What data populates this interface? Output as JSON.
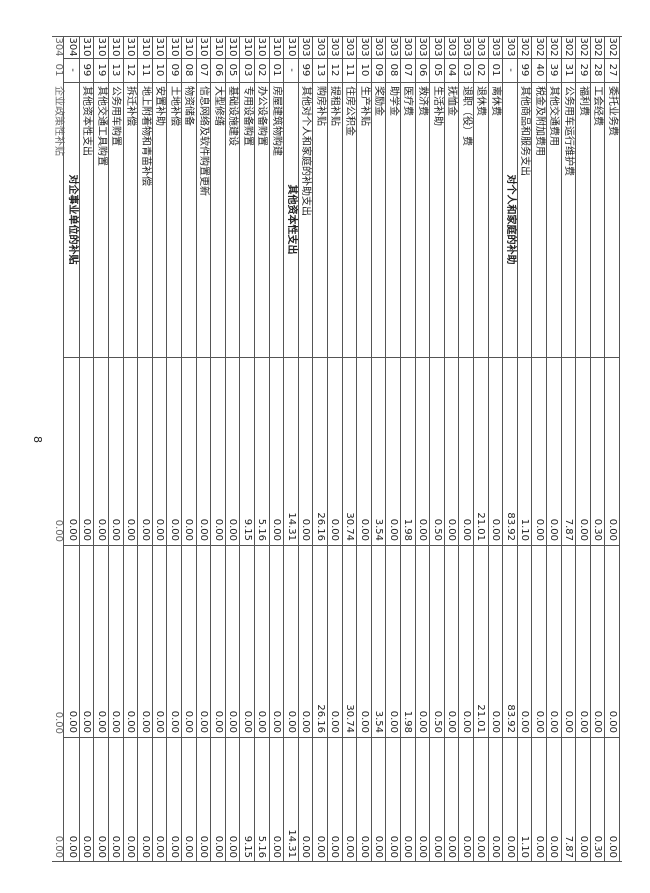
{
  "page_number": "8",
  "rows": [
    {
      "code": "302",
      "sub": "27",
      "name": "委托业务费",
      "v1": "0.00",
      "v2": "0.00",
      "v3": "0.00"
    },
    {
      "code": "302",
      "sub": "28",
      "name": "工会经费",
      "v1": "0.30",
      "v2": "0.00",
      "v3": "0.30"
    },
    {
      "code": "302",
      "sub": "29",
      "name": "福利费",
      "v1": "0.00",
      "v2": "0.00",
      "v3": "0.00"
    },
    {
      "code": "302",
      "sub": "31",
      "name": "公务用车运行维护费",
      "v1": "7.87",
      "v2": "0.00",
      "v3": "7.87"
    },
    {
      "code": "302",
      "sub": "39",
      "name": "其他交通费用",
      "v1": "0.00",
      "v2": "0.00",
      "v3": "0.00"
    },
    {
      "code": "302",
      "sub": "40",
      "name": "税金及附加费用",
      "v1": "0.00",
      "v2": "0.00",
      "v3": "0.00"
    },
    {
      "code": "302",
      "sub": "99",
      "name": "其他商品和服务支出",
      "v1": "1.10",
      "v2": "0.00",
      "v3": "1.10"
    },
    {
      "code": "303",
      "sub": "-",
      "name": "对个人和家庭的补助",
      "v1": "83.92",
      "v2": "83.92",
      "v3": "0.00",
      "bold": true
    },
    {
      "code": "303",
      "sub": "01",
      "name": "离休费",
      "v1": "0.00",
      "v2": "0.00",
      "v3": "0.00"
    },
    {
      "code": "303",
      "sub": "02",
      "name": "退休费",
      "v1": "21.01",
      "v2": "21.01",
      "v3": "0.00"
    },
    {
      "code": "303",
      "sub": "03",
      "name": "退职（役）费",
      "v1": "0.00",
      "v2": "0.00",
      "v3": "0.00"
    },
    {
      "code": "303",
      "sub": "04",
      "name": "抚恤金",
      "v1": "0.00",
      "v2": "0.00",
      "v3": "0.00"
    },
    {
      "code": "303",
      "sub": "05",
      "name": "生活补助",
      "v1": "0.50",
      "v2": "0.50",
      "v3": "0.00"
    },
    {
      "code": "303",
      "sub": "06",
      "name": "救济费",
      "v1": "0.00",
      "v2": "0.00",
      "v3": "0.00"
    },
    {
      "code": "303",
      "sub": "07",
      "name": "医疗费",
      "v1": "1.98",
      "v2": "1.98",
      "v3": "0.00"
    },
    {
      "code": "303",
      "sub": "08",
      "name": "助学金",
      "v1": "0.00",
      "v2": "0.00",
      "v3": "0.00"
    },
    {
      "code": "303",
      "sub": "09",
      "name": "奖励金",
      "v1": "3.54",
      "v2": "3.54",
      "v3": "0.00"
    },
    {
      "code": "303",
      "sub": "10",
      "name": "生产补贴",
      "v1": "0.00",
      "v2": "0.00",
      "v3": "0.00"
    },
    {
      "code": "303",
      "sub": "11",
      "name": "住房公积金",
      "v1": "30.74",
      "v2": "30.74",
      "v3": "0.00"
    },
    {
      "code": "303",
      "sub": "12",
      "name": "提租补贴",
      "v1": "0.00",
      "v2": "0.00",
      "v3": "0.00"
    },
    {
      "code": "303",
      "sub": "13",
      "name": "购房补贴",
      "v1": "26.16",
      "v2": "26.16",
      "v3": "0.00"
    },
    {
      "code": "303",
      "sub": "99",
      "name": "其他对个人和家庭的补助支出",
      "v1": "0.00",
      "v2": "0.00",
      "v3": "0.00"
    },
    {
      "code": "310",
      "sub": "-",
      "name": "其他资本性支出",
      "v1": "14.31",
      "v2": "0.00",
      "v3": "14.31",
      "bold": true
    },
    {
      "code": "310",
      "sub": "01",
      "name": "房屋建筑物购建",
      "v1": "0.00",
      "v2": "0.00",
      "v3": "0.00"
    },
    {
      "code": "310",
      "sub": "02",
      "name": "办公设备购置",
      "v1": "5.16",
      "v2": "0.00",
      "v3": "5.16"
    },
    {
      "code": "310",
      "sub": "03",
      "name": "专用设备购置",
      "v1": "9.15",
      "v2": "0.00",
      "v3": "9.15"
    },
    {
      "code": "310",
      "sub": "05",
      "name": "基础设施建设",
      "v1": "0.00",
      "v2": "0.00",
      "v3": "0.00"
    },
    {
      "code": "310",
      "sub": "06",
      "name": "大型修缮",
      "v1": "0.00",
      "v2": "0.00",
      "v3": "0.00"
    },
    {
      "code": "310",
      "sub": "07",
      "name": "信息网络及软件购置更新",
      "v1": "0.00",
      "v2": "0.00",
      "v3": "0.00"
    },
    {
      "code": "310",
      "sub": "08",
      "name": "物资储备",
      "v1": "0.00",
      "v2": "0.00",
      "v3": "0.00"
    },
    {
      "code": "310",
      "sub": "09",
      "name": "土地补偿",
      "v1": "0.00",
      "v2": "0.00",
      "v3": "0.00"
    },
    {
      "code": "310",
      "sub": "10",
      "name": "安置补助",
      "v1": "0.00",
      "v2": "0.00",
      "v3": "0.00"
    },
    {
      "code": "310",
      "sub": "11",
      "name": "地上附着物和青苗补偿",
      "v1": "0.00",
      "v2": "0.00",
      "v3": "0.00"
    },
    {
      "code": "310",
      "sub": "12",
      "name": "拆迁补偿",
      "v1": "0.00",
      "v2": "0.00",
      "v3": "0.00"
    },
    {
      "code": "310",
      "sub": "13",
      "name": "公务用车购置",
      "v1": "0.00",
      "v2": "0.00",
      "v3": "0.00"
    },
    {
      "code": "310",
      "sub": "19",
      "name": "其他交通工具购置",
      "v1": "0.00",
      "v2": "0.00",
      "v3": "0.00"
    },
    {
      "code": "310",
      "sub": "99",
      "name": "其他资本性支出",
      "v1": "0.00",
      "v2": "0.00",
      "v3": "0.00"
    },
    {
      "code": "304",
      "sub": "-",
      "name": "对企事业单位的补贴",
      "v1": "0.00",
      "v2": "0.00",
      "v3": "0.00",
      "bold": true
    },
    {
      "code": "304",
      "sub": "01",
      "name": "企业政策性补贴",
      "v1": "0.00",
      "v2": "0.00",
      "v3": "0.00",
      "partial": true
    }
  ]
}
